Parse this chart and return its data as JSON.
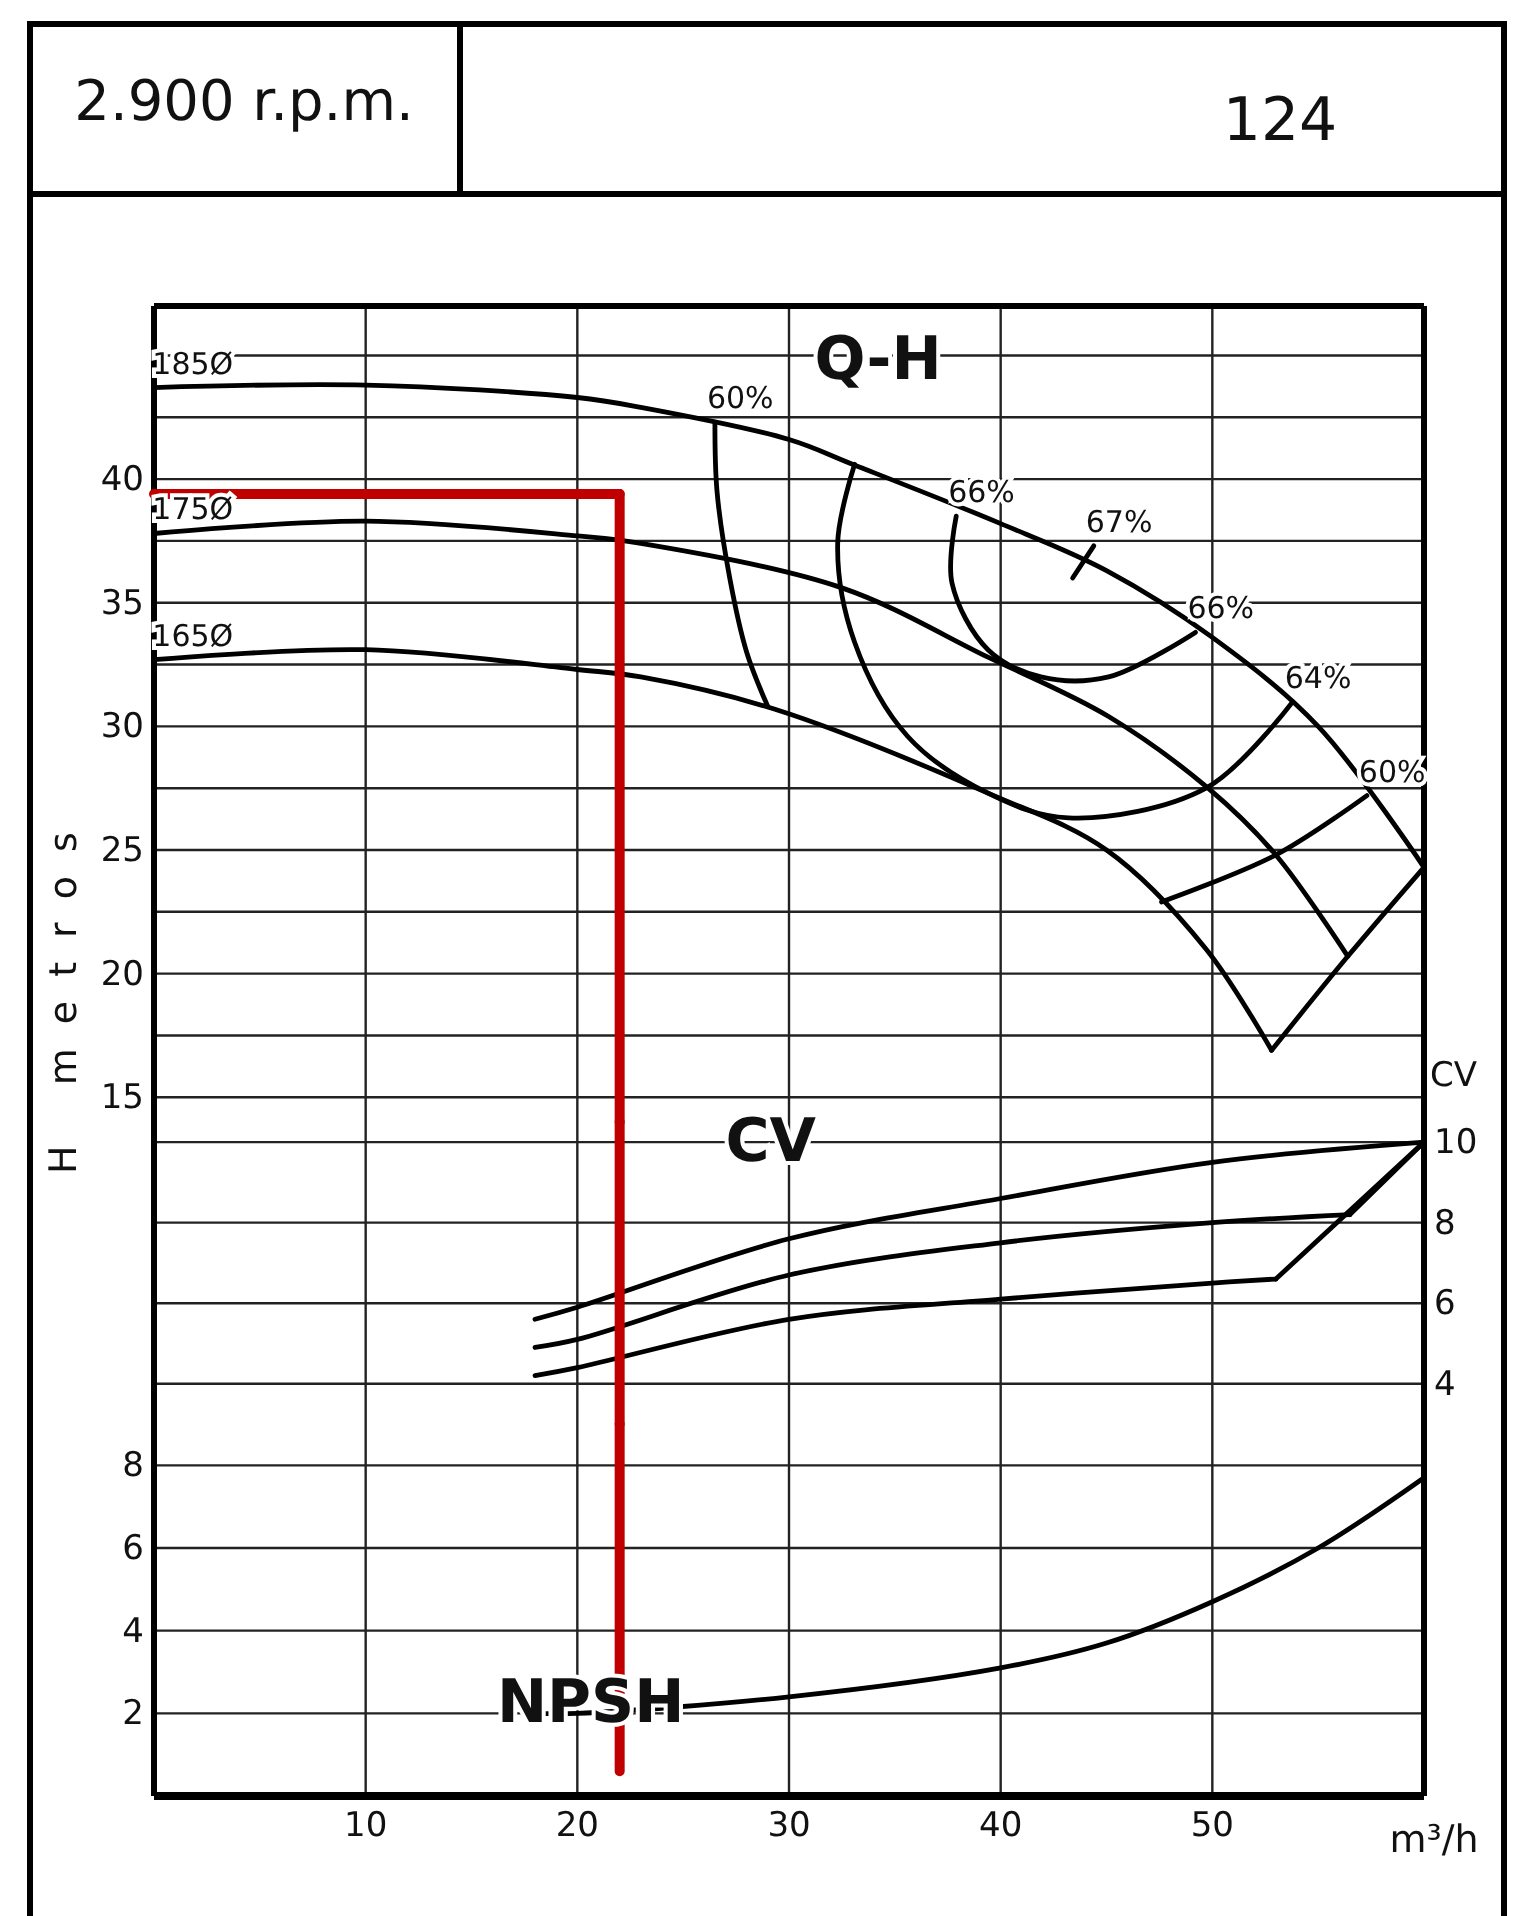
{
  "chart_data": [
    {
      "type": "line",
      "title": "2.900 r.p.m.",
      "subtitle": "124",
      "ylabel": "H metros",
      "xlim": [
        0,
        60
      ],
      "xticks": [
        10,
        20,
        30,
        40,
        50
      ],
      "ylim": [
        14,
        47
      ],
      "yticks": [
        15,
        {
          "value": 17.5,
          "label": null
        },
        20,
        {
          "value": 22.5,
          "label": null
        },
        25,
        {
          "value": 27.5,
          "label": null
        },
        30,
        {
          "value": 32.5,
          "label": null
        },
        35,
        {
          "value": 37.5,
          "label": null
        },
        40,
        {
          "value": 42.5,
          "label": null
        },
        {
          "value": 45,
          "label": null
        }
      ],
      "grid": true,
      "tick_labels": "y",
      "marker": "none",
      "line_style": "solid",
      "series": [
        {
          "color": "#000000",
          "x": [
            0,
            10,
            20,
            23,
            30,
            33,
            40,
            45,
            50,
            55,
            60
          ],
          "values": [
            43.7,
            43.8,
            43.3,
            42.9,
            41.6,
            40.6,
            38.2,
            36.3,
            33.6,
            30.0,
            24.3
          ]
        },
        {
          "color": "#000000",
          "x": [
            0,
            10,
            20,
            23,
            32.5,
            39.4,
            45.1,
            49.8,
            53,
            56.4
          ],
          "values": [
            37.8,
            38.3,
            37.7,
            37.4,
            35.6,
            32.8,
            30.4,
            27.5,
            24.8,
            20.7
          ]
        },
        {
          "color": "#000000",
          "x": [
            0,
            10,
            20,
            23,
            29.3,
            39.4,
            45,
            49.7,
            52.8
          ],
          "values": [
            32.7,
            33.1,
            32.3,
            32.0,
            30.7,
            27.3,
            25.0,
            21.0,
            16.9
          ]
        },
        {
          "color": "#000000",
          "x": [
            52.8,
            56.4,
            60
          ],
          "values": [
            16.9,
            20.7,
            24.3
          ]
        },
        {
          "color": "#000000",
          "x": [
            26.5,
            26.6,
            27.2,
            28,
            29.0
          ],
          "values": [
            42.3,
            39.5,
            36,
            33,
            30.8
          ]
        },
        {
          "color": "#000000",
          "x": [
            33.1,
            32.3,
            33.1,
            35.6,
            39.4,
            43.2,
            49.7,
            53.8
          ],
          "values": [
            40.6,
            37.4,
            33.4,
            29.6,
            27.3,
            26.3,
            27.5,
            31.0
          ]
        },
        {
          "color": "#000000",
          "x": [
            37.9,
            37.7,
            39.4,
            41.9,
            45.1,
            49.2
          ],
          "values": [
            38.5,
            35.8,
            33.1,
            32.0,
            32.0,
            33.8
          ]
        },
        {
          "color": "#000000",
          "x": [
            43.4,
            44.4
          ],
          "values": [
            36.0,
            37.3
          ]
        },
        {
          "color": "#000000",
          "x": [
            57.3,
            53.0,
            47.6
          ],
          "values": [
            27.2,
            24.8,
            22.9
          ]
        },
        {
          "color": "#c00000",
          "x": [
            0,
            22
          ],
          "values": [
            39.4,
            39.4
          ]
        },
        {
          "color": "#c00000",
          "x": [
            22,
            22
          ],
          "values": [
            39.4,
            14
          ]
        }
      ],
      "annotations": [
        {
          "text": "185Ø",
          "x": 0.3,
          "y": 43.7
        },
        {
          "text": "175Ø",
          "x": 0.3,
          "y": 37.8
        },
        {
          "text": "165Ø",
          "x": 0.3,
          "y": 32.7
        },
        "Q-H",
        {
          "text": "60%",
          "x": 26.5,
          "y": 42.3
        },
        {
          "text": "66%",
          "x": 37.9,
          "y": 38.5
        },
        {
          "text": "67%",
          "x": 44.4,
          "y": 37.3
        },
        {
          "text": "66%",
          "x": 49.2,
          "y": 33.8
        },
        {
          "text": "64%",
          "x": 53.8,
          "y": 31.0
        },
        {
          "text": "60%",
          "x": 57.3,
          "y": 27.2
        }
      ]
    },
    {
      "type": "line",
      "ylabel": "CV",
      "xlim": [
        0,
        60
      ],
      "xticks": [
        10,
        20,
        30,
        40,
        50
      ],
      "ylim": [
        3,
        10.5
      ],
      "yticks": [
        4,
        6,
        8,
        10
      ],
      "grid": true,
      "tick_labels": "y",
      "marker": "none",
      "line_style": "solid",
      "series": [
        {
          "color": "#000000",
          "x": [
            18,
            20,
            30,
            40,
            50,
            60
          ],
          "values": [
            5.6,
            5.9,
            7.6,
            8.6,
            9.5,
            10
          ]
        },
        {
          "color": "#000000",
          "x": [
            18,
            20,
            30,
            40,
            50,
            56.5
          ],
          "values": [
            4.9,
            5.1,
            6.7,
            7.5,
            8.0,
            8.2
          ]
        },
        {
          "color": "#000000",
          "x": [
            56.5,
            60
          ],
          "values": [
            8.2,
            10
          ]
        },
        {
          "color": "#000000",
          "x": [
            18,
            20,
            30,
            40,
            50,
            53
          ],
          "values": [
            4.2,
            4.4,
            5.6,
            6.1,
            6.5,
            6.6
          ]
        },
        {
          "color": "#000000",
          "x": [
            53,
            60
          ],
          "values": [
            6.6,
            10
          ]
        },
        {
          "color": "#c00000",
          "x": [
            22,
            22
          ],
          "values": [
            10.5,
            3
          ]
        }
      ],
      "annotations": [
        "CV"
      ]
    },
    {
      "type": "line",
      "xlabel": "m³/h",
      "xlim": [
        0,
        60
      ],
      "xticks": [
        10,
        20,
        30,
        40,
        50
      ],
      "ylim": [
        0,
        9
      ],
      "yticks": [
        2,
        4,
        6,
        8
      ],
      "grid": true,
      "marker": "none",
      "line_style": "solid",
      "series": [
        {
          "color": "#000000",
          "x": [
            18,
            20,
            30,
            40,
            45,
            50,
            55,
            60
          ],
          "values": [
            2.0,
            2.0,
            2.4,
            3.1,
            3.7,
            4.7,
            6.0,
            7.7
          ]
        },
        {
          "color": "#c00000",
          "x": [
            22,
            22
          ],
          "values": [
            9,
            0.6
          ]
        }
      ],
      "annotations": [
        "NPSH"
      ]
    }
  ]
}
